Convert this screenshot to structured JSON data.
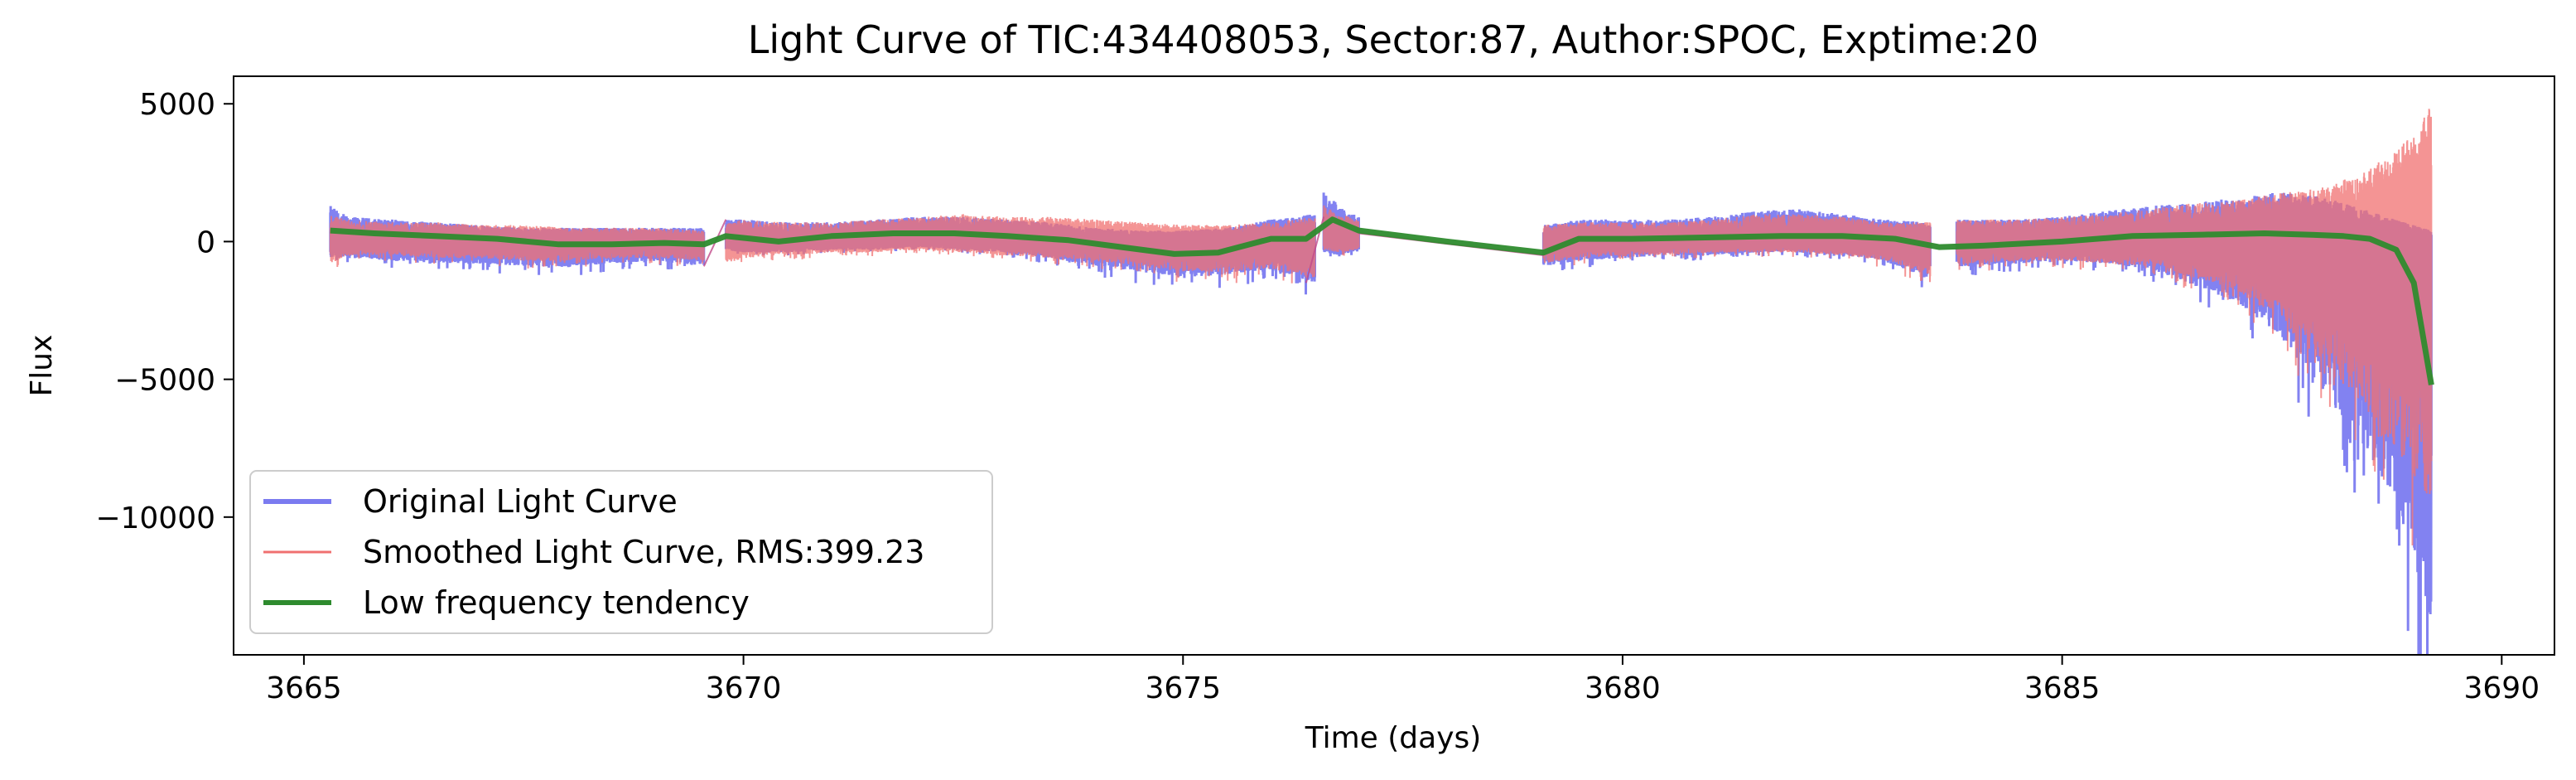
{
  "chart_data": {
    "type": "line",
    "title": "Light Curve of TIC:434408053, Sector:87, Author:SPOC, Exptime:20",
    "xlabel": "Time (days)",
    "ylabel": "Flux",
    "xlim": [
      3664.2,
      3690.6
    ],
    "ylim": [
      -15000,
      6000
    ],
    "xticks": [
      3665,
      3670,
      3675,
      3680,
      3685,
      3690
    ],
    "xtick_labels": [
      "3665",
      "3670",
      "3675",
      "3680",
      "3685",
      "3690"
    ],
    "yticks": [
      5000,
      0,
      -5000,
      -10000
    ],
    "ytick_labels": [
      "5000",
      "0",
      "−5000",
      "−10000"
    ],
    "grid": false,
    "legend_position": "lower-left",
    "series": [
      {
        "name": "Original Light Curve",
        "color": "#7b7bf0",
        "style": "noisy-band",
        "segments": [
          {
            "x": [
              3665.3,
              3665.5,
              3666.0,
              3666.5,
              3667.0,
              3667.5,
              3668.0,
              3668.5,
              3669.0,
              3669.55
            ],
            "upper": [
              1300,
              900,
              800,
              700,
              600,
              500,
              500,
              500,
              500,
              500
            ],
            "lower": [
              -600,
              -600,
              -700,
              -800,
              -800,
              -900,
              -900,
              -800,
              -700,
              -900
            ]
          },
          {
            "x": [
              3669.8,
              3670.0,
              3670.5,
              3671.0,
              3671.5,
              3672.0,
              3672.5,
              3673.0,
              3673.5,
              3674.0,
              3674.5,
              3675.0,
              3675.5,
              3676.0,
              3676.5
            ],
            "upper": [
              800,
              800,
              700,
              700,
              800,
              900,
              900,
              800,
              700,
              500,
              400,
              400,
              500,
              800,
              1000
            ],
            "lower": [
              -300,
              -400,
              -400,
              -300,
              -300,
              -200,
              -300,
              -400,
              -600,
              -900,
              -1100,
              -1300,
              -1200,
              -1000,
              -1500
            ]
          },
          {
            "x": [
              3676.6,
              3676.8,
              3677.0
            ],
            "upper": [
              1900,
              1200,
              900
            ],
            "lower": [
              -400,
              -500,
              -300
            ]
          },
          {
            "x": [
              3679.1,
              3679.5,
              3680.0,
              3680.5,
              3681.0,
              3681.5,
              3682.0,
              3682.5,
              3683.0,
              3683.5
            ],
            "upper": [
              600,
              800,
              800,
              800,
              900,
              1100,
              1200,
              1000,
              800,
              700
            ],
            "lower": [
              -900,
              -700,
              -600,
              -500,
              -500,
              -400,
              -400,
              -500,
              -700,
              -1400
            ]
          },
          {
            "x": [
              3683.8,
              3684.0,
              3684.5,
              3685.0,
              3685.5,
              3686.0,
              3686.5,
              3687.0,
              3687.5,
              3688.0,
              3688.4,
              3688.8,
              3689.0,
              3689.2
            ],
            "upper": [
              800,
              800,
              800,
              900,
              1100,
              1300,
              1400,
              1600,
              1800,
              1600,
              1200,
              800,
              600,
              400
            ],
            "lower": [
              -900,
              -900,
              -800,
              -700,
              -800,
              -1000,
              -1600,
              -2200,
              -3500,
              -5500,
              -7500,
              -9500,
              -11500,
              -14000
            ]
          }
        ]
      },
      {
        "name": "Smoothed Light Curve, RMS:399.23",
        "color": "#f07070",
        "style": "noisy-band",
        "segments": [
          {
            "x": [
              3665.3,
              3665.5,
              3666.0,
              3666.5,
              3667.0,
              3667.5,
              3668.0,
              3668.5,
              3669.0,
              3669.55
            ],
            "upper": [
              1000,
              800,
              700,
              700,
              600,
              600,
              500,
              500,
              500,
              400
            ],
            "lower": [
              -800,
              -500,
              -500,
              -600,
              -600,
              -700,
              -700,
              -600,
              -600,
              -700
            ]
          },
          {
            "x": [
              3669.8,
              3670.0,
              3670.5,
              3671.0,
              3671.5,
              3672.0,
              3672.5,
              3673.0,
              3673.5,
              3674.0,
              3674.5,
              3675.0,
              3675.5,
              3676.0,
              3676.5
            ],
            "upper": [
              700,
              800,
              700,
              700,
              800,
              900,
              1000,
              900,
              900,
              800,
              700,
              600,
              600,
              700,
              900
            ],
            "lower": [
              -800,
              -600,
              -500,
              -400,
              -400,
              -300,
              -400,
              -500,
              -600,
              -700,
              -900,
              -1100,
              -1100,
              -1000,
              -1300
            ]
          },
          {
            "x": [
              3676.6,
              3676.8,
              3677.0
            ],
            "upper": [
              1400,
              1000,
              800
            ],
            "lower": [
              -300,
              -400,
              -300
            ]
          },
          {
            "x": [
              3679.1,
              3679.5,
              3680.0,
              3680.5,
              3681.0,
              3681.5,
              3682.0,
              3682.5,
              3683.0,
              3683.5
            ],
            "upper": [
              600,
              700,
              700,
              700,
              800,
              1000,
              1000,
              900,
              700,
              700
            ],
            "lower": [
              -800,
              -600,
              -500,
              -500,
              -400,
              -400,
              -400,
              -500,
              -700,
              -1200
            ]
          },
          {
            "x": [
              3683.8,
              3684.0,
              3684.5,
              3685.0,
              3685.5,
              3686.0,
              3686.5,
              3687.0,
              3687.5,
              3688.0,
              3688.4,
              3688.8,
              3689.0,
              3689.2
            ],
            "upper": [
              800,
              800,
              800,
              900,
              1000,
              1200,
              1400,
              1500,
              1800,
              2000,
              2500,
              3300,
              4000,
              5000
            ],
            "lower": [
              -800,
              -800,
              -700,
              -700,
              -800,
              -900,
              -1300,
              -1800,
              -3000,
              -4500,
              -6000,
              -7500,
              -8500,
              -9500
            ]
          }
        ]
      },
      {
        "name": "Low frequency tendency",
        "color": "#2e8b2e",
        "style": "line",
        "x": [
          3665.3,
          3665.8,
          3666.5,
          3667.2,
          3667.9,
          3668.5,
          3669.1,
          3669.55,
          3669.8,
          3670.4,
          3671.0,
          3671.7,
          3672.4,
          3673.0,
          3673.7,
          3674.3,
          3674.9,
          3675.4,
          3676.0,
          3676.4,
          3676.7,
          3677.0,
          3678.0,
          3679.1,
          3679.5,
          3680.1,
          3681.0,
          3681.8,
          3682.5,
          3683.1,
          3683.6,
          3684.1,
          3685.0,
          3685.8,
          3686.6,
          3687.3,
          3687.8,
          3688.2,
          3688.5,
          3688.8,
          3689.0,
          3689.2
        ],
        "y": [
          400,
          300,
          200,
          100,
          -100,
          -100,
          -50,
          -100,
          200,
          0,
          200,
          300,
          300,
          200,
          50,
          -200,
          -450,
          -400,
          100,
          100,
          800,
          400,
          0,
          -400,
          100,
          100,
          150,
          200,
          200,
          100,
          -200,
          -150,
          0,
          200,
          250,
          300,
          250,
          200,
          100,
          -300,
          -1500,
          -5200
        ]
      }
    ],
    "connectors": [
      {
        "x": [
          3669.55,
          3669.8
        ],
        "y": [
          -900,
          800
        ]
      },
      {
        "x": [
          3676.4,
          3676.6
        ],
        "y": [
          -1500,
          900
        ]
      },
      {
        "x": [
          3677.0,
          3679.1
        ],
        "y": [
          300,
          -500
        ]
      }
    ]
  }
}
